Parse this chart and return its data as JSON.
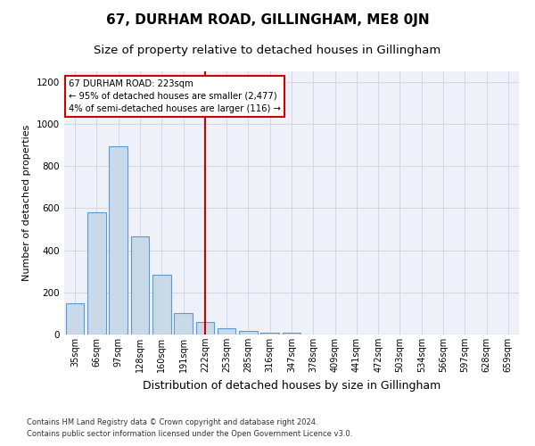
{
  "title": "67, DURHAM ROAD, GILLINGHAM, ME8 0JN",
  "subtitle": "Size of property relative to detached houses in Gillingham",
  "xlabel": "Distribution of detached houses by size in Gillingham",
  "ylabel": "Number of detached properties",
  "bar_labels": [
    "35sqm",
    "66sqm",
    "97sqm",
    "128sqm",
    "160sqm",
    "191sqm",
    "222sqm",
    "253sqm",
    "285sqm",
    "316sqm",
    "347sqm",
    "378sqm",
    "409sqm",
    "441sqm",
    "472sqm",
    "503sqm",
    "534sqm",
    "566sqm",
    "597sqm",
    "628sqm",
    "659sqm"
  ],
  "bar_values": [
    150,
    580,
    895,
    465,
    285,
    100,
    60,
    28,
    18,
    10,
    10,
    0,
    0,
    0,
    0,
    0,
    0,
    0,
    0,
    0,
    0
  ],
  "bar_color": "#c9d9e8",
  "bar_edgecolor": "#5b9bd5",
  "annotation_line1": "67 DURHAM ROAD: 223sqm",
  "annotation_line2": "← 95% of detached houses are smaller (2,477)",
  "annotation_line3": "4% of semi-detached houses are larger (116) →",
  "vline_x_index": 6,
  "vline_color": "#cc0000",
  "annotation_box_color": "white",
  "annotation_box_edgecolor": "#cc0000",
  "ylim": [
    0,
    1250
  ],
  "yticks": [
    0,
    200,
    400,
    600,
    800,
    1000,
    1200
  ],
  "grid_color": "#d0d8e8",
  "background_color": "#eef2f8",
  "footnote1": "Contains HM Land Registry data © Crown copyright and database right 2024.",
  "footnote2": "Contains public sector information licensed under the Open Government Licence v3.0.",
  "title_fontsize": 11,
  "subtitle_fontsize": 9.5,
  "xlabel_fontsize": 9,
  "ylabel_fontsize": 8
}
